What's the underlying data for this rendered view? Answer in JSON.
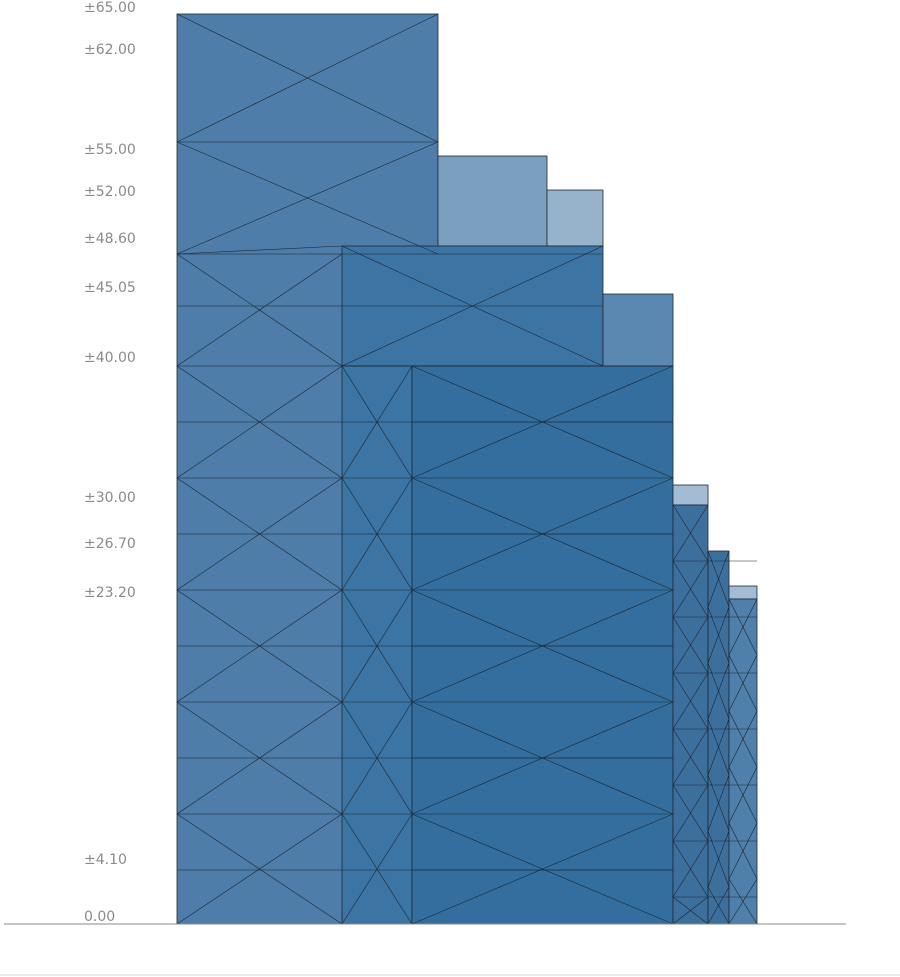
{
  "levels": [
    "0.00",
    "±4.10",
    "±23.20",
    "±26.70",
    "±30.00",
    "±40.00",
    "±45.05",
    "±48.60",
    "±52.00",
    "±55.00",
    "±62.00",
    "±65.00"
  ],
  "colors": {
    "tower_a": "#4d7da8",
    "tower_b": "#3c74a3",
    "tower_c": "#336e9e",
    "tower_d": "#3d6f9d",
    "tower_e": "#4f80ab",
    "setback_light": "#7b9fbe",
    "setback_pale": "#97b3cc",
    "cap_pale": "#a3bcd4",
    "mid_block": "#5a88b1"
  }
}
